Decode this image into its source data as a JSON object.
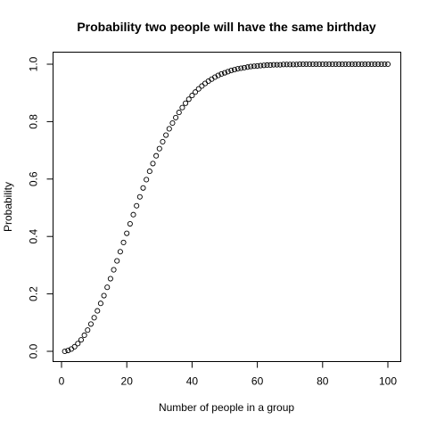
{
  "chart_data": {
    "type": "scatter",
    "title": "Probability two people will have the same birthday",
    "xlabel": "Number of people in a group",
    "ylabel": "Probability",
    "xlim": [
      1,
      100
    ],
    "ylim": [
      0,
      1
    ],
    "x_ticks": [
      0,
      20,
      40,
      60,
      80,
      100
    ],
    "x_tick_labels": [
      "0",
      "20",
      "40",
      "60",
      "80",
      "100"
    ],
    "y_ticks": [
      0.0,
      0.2,
      0.4,
      0.6,
      0.8,
      1.0
    ],
    "y_tick_labels": [
      "0.0",
      "0.2",
      "0.4",
      "0.6",
      "0.8",
      "1.0"
    ],
    "grid": false,
    "marker": "open-circle",
    "x": [
      1,
      2,
      3,
      4,
      5,
      6,
      7,
      8,
      9,
      10,
      11,
      12,
      13,
      14,
      15,
      16,
      17,
      18,
      19,
      20,
      21,
      22,
      23,
      24,
      25,
      26,
      27,
      28,
      29,
      30,
      31,
      32,
      33,
      34,
      35,
      36,
      37,
      38,
      39,
      40,
      41,
      42,
      43,
      44,
      45,
      46,
      47,
      48,
      49,
      50,
      51,
      52,
      53,
      54,
      55,
      56,
      57,
      58,
      59,
      60,
      61,
      62,
      63,
      64,
      65,
      66,
      67,
      68,
      69,
      70,
      71,
      72,
      73,
      74,
      75,
      76,
      77,
      78,
      79,
      80,
      81,
      82,
      83,
      84,
      85,
      86,
      87,
      88,
      89,
      90,
      91,
      92,
      93,
      94,
      95,
      96,
      97,
      98,
      99,
      100
    ],
    "y": [
      0,
      0.003,
      0.008,
      0.016,
      0.027,
      0.04,
      0.056,
      0.074,
      0.095,
      0.117,
      0.141,
      0.167,
      0.194,
      0.223,
      0.253,
      0.284,
      0.315,
      0.347,
      0.379,
      0.411,
      0.444,
      0.476,
      0.507,
      0.538,
      0.569,
      0.598,
      0.627,
      0.654,
      0.681,
      0.706,
      0.73,
      0.753,
      0.775,
      0.795,
      0.814,
      0.832,
      0.849,
      0.864,
      0.878,
      0.891,
      0.903,
      0.914,
      0.924,
      0.933,
      0.941,
      0.948,
      0.955,
      0.961,
      0.966,
      0.97,
      0.974,
      0.978,
      0.981,
      0.984,
      0.986,
      0.988,
      0.99,
      0.992,
      0.993,
      0.994,
      0.995,
      0.996,
      0.997,
      0.997,
      0.998,
      0.998,
      0.998,
      0.999,
      0.999,
      0.999,
      0.999,
      0.999,
      1.0,
      1.0,
      1.0,
      1.0,
      1.0,
      1.0,
      1.0,
      1.0,
      1.0,
      1.0,
      1.0,
      1.0,
      1.0,
      1.0,
      1.0,
      1.0,
      1.0,
      1.0,
      1.0,
      1.0,
      1.0,
      1.0,
      1.0,
      1.0,
      1.0,
      1.0,
      1.0,
      1.0
    ]
  }
}
